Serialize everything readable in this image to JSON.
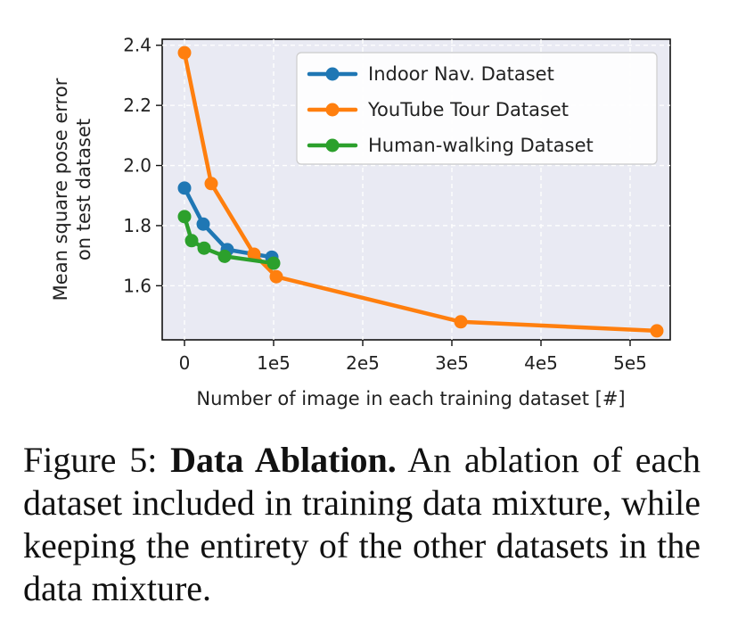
{
  "chart_data": {
    "type": "line",
    "xlabel": "Number of image in each training dataset [#]",
    "ylabel": [
      "Mean square pose error",
      "on test dataset"
    ],
    "xlim": [
      -25000,
      545000
    ],
    "ylim": [
      1.42,
      2.42
    ],
    "x_ticks": [
      0,
      100000,
      200000,
      300000,
      400000,
      500000
    ],
    "x_tick_labels": [
      "0",
      "1e5",
      "2e5",
      "3e5",
      "4e5",
      "5e5"
    ],
    "y_ticks": [
      1.6,
      1.8,
      2.0,
      2.2,
      2.4
    ],
    "y_tick_labels": [
      "1.6",
      "1.8",
      "2.0",
      "2.2",
      "2.4"
    ],
    "grid": true,
    "legend_position": "top-right",
    "background": "#e9eaf3",
    "series": [
      {
        "name": "Indoor Nav. Dataset",
        "color": "#1f77b4",
        "x": [
          0,
          21000,
          48000,
          98000
        ],
        "y": [
          1.925,
          1.805,
          1.72,
          1.695
        ]
      },
      {
        "name": "YouTube Tour Dataset",
        "color": "#ff7f0e",
        "x": [
          0,
          30000,
          78000,
          103000,
          310000,
          530000
        ],
        "y": [
          2.375,
          1.94,
          1.705,
          1.63,
          1.48,
          1.45
        ]
      },
      {
        "name": "Human-walking Dataset",
        "color": "#2ca02c",
        "x": [
          0,
          8000,
          22000,
          45000,
          100000
        ],
        "y": [
          1.83,
          1.75,
          1.725,
          1.698,
          1.675
        ]
      }
    ]
  },
  "caption": {
    "prefix": "Figure 5:",
    "title": "Data Ablation.",
    "line1_rest": "An ablation",
    "line2": "of each dataset included in training data",
    "line3": "mixture, while keeping the entirety of",
    "line4": "the other datasets in the data mixture."
  }
}
